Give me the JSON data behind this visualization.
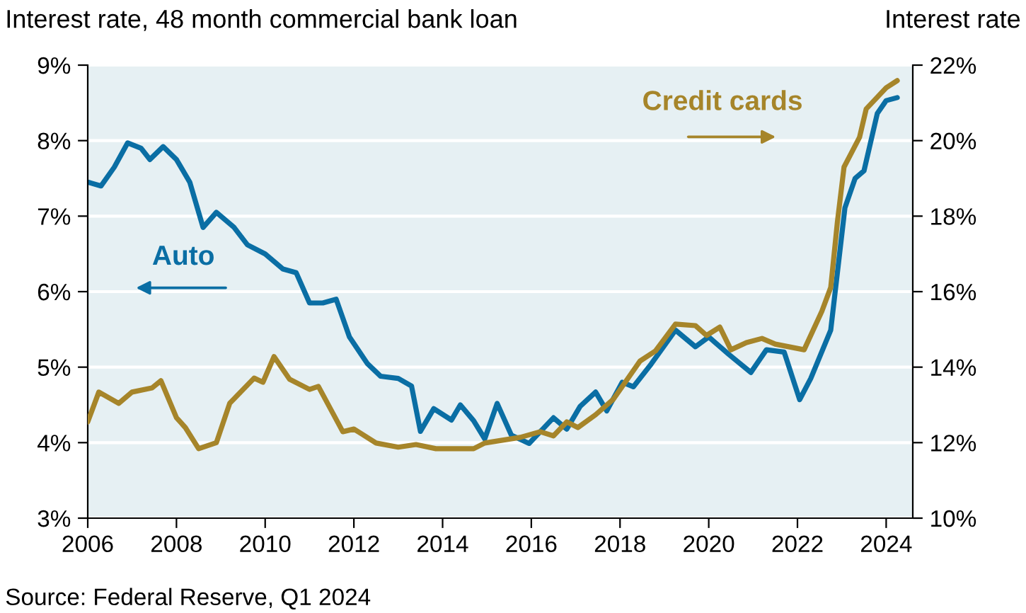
{
  "chart_data": {
    "type": "line",
    "ylabel": "Interest rate, 48 month commercial bank loan",
    "y2label": "Interest rate",
    "annotations": [
      "Source: Federal Reserve, Q1 2024"
    ],
    "xlim": [
      2006,
      2024.6
    ],
    "xticks": [
      2006,
      2008,
      2010,
      2012,
      2014,
      2016,
      2018,
      2020,
      2022,
      2024
    ],
    "ylim": [
      3,
      9
    ],
    "yticks": [
      {
        "value": 3,
        "label": "3%"
      },
      {
        "value": 4,
        "label": "4%"
      },
      {
        "value": 5,
        "label": "5%"
      },
      {
        "value": 6,
        "label": "6%"
      },
      {
        "value": 7,
        "label": "7%"
      },
      {
        "value": 8,
        "label": "8%"
      },
      {
        "value": 9,
        "label": "9%"
      }
    ],
    "y2lim": [
      10,
      22
    ],
    "y2ticks": [
      {
        "value": 10,
        "label": "10%"
      },
      {
        "value": 12,
        "label": "12%"
      },
      {
        "value": 14,
        "label": "14%"
      },
      {
        "value": 16,
        "label": "16%"
      },
      {
        "value": 18,
        "label": "18%"
      },
      {
        "value": 20,
        "label": "20%"
      },
      {
        "value": 22,
        "label": "22%"
      }
    ],
    "grid": "y",
    "legend": false,
    "marker": "none",
    "line_style": "solid",
    "series": [
      {
        "name": "Auto",
        "color": "#0a6ea4",
        "axis": "y",
        "x": [
          2006.0,
          2006.3,
          2006.6,
          2006.9,
          2007.2,
          2007.4,
          2007.7,
          2008.0,
          2008.3,
          2008.6,
          2008.9,
          2009.3,
          2009.6,
          2010.0,
          2010.4,
          2010.7,
          2011.0,
          2011.3,
          2011.6,
          2011.9,
          2012.3,
          2012.6,
          2013.0,
          2013.3,
          2013.5,
          2013.8,
          2014.2,
          2014.4,
          2014.7,
          2014.95,
          2015.23,
          2015.55,
          2015.95,
          2016.5,
          2016.8,
          2017.1,
          2017.45,
          2017.7,
          2018.05,
          2018.3,
          2018.7,
          2019.25,
          2019.7,
          2020.0,
          2020.45,
          2020.95,
          2021.3,
          2021.7,
          2022.05,
          2022.3,
          2022.75,
          2023.07,
          2023.3,
          2023.5,
          2023.8,
          2024.0,
          2024.25
        ],
        "values": [
          7.45,
          7.4,
          7.65,
          7.97,
          7.9,
          7.75,
          7.92,
          7.75,
          7.45,
          6.85,
          7.05,
          6.85,
          6.62,
          6.5,
          6.3,
          6.25,
          5.85,
          5.85,
          5.9,
          5.4,
          5.05,
          4.88,
          4.85,
          4.75,
          4.15,
          4.45,
          4.3,
          4.5,
          4.29,
          4.05,
          4.52,
          4.1,
          3.99,
          4.33,
          4.18,
          4.48,
          4.67,
          4.42,
          4.8,
          4.74,
          5.04,
          5.49,
          5.27,
          5.4,
          5.17,
          4.93,
          5.23,
          5.2,
          4.57,
          4.85,
          5.49,
          7.11,
          7.5,
          7.6,
          8.36,
          8.53,
          8.57
        ]
      },
      {
        "name": "Credit cards",
        "color": "#a6852a",
        "axis": "y2",
        "x": [
          2006.0,
          2006.25,
          2006.7,
          2007.0,
          2007.45,
          2007.65,
          2008.0,
          2008.2,
          2008.5,
          2008.9,
          2009.2,
          2009.75,
          2009.95,
          2010.2,
          2010.55,
          2011.0,
          2011.2,
          2011.75,
          2012.0,
          2012.5,
          2013.0,
          2013.4,
          2013.85,
          2014.7,
          2014.95,
          2015.75,
          2016.2,
          2016.5,
          2016.8,
          2017.05,
          2017.45,
          2017.85,
          2018.45,
          2018.8,
          2019.25,
          2019.7,
          2019.95,
          2020.25,
          2020.5,
          2020.85,
          2021.2,
          2021.5,
          2022.15,
          2022.55,
          2022.75,
          2022.9,
          2023.05,
          2023.4,
          2023.55,
          2024.0,
          2024.25
        ],
        "values": [
          12.55,
          13.34,
          13.04,
          13.34,
          13.45,
          13.64,
          12.66,
          12.4,
          11.84,
          12.0,
          13.04,
          13.71,
          13.6,
          14.28,
          13.68,
          13.41,
          13.49,
          12.29,
          12.36,
          11.99,
          11.88,
          11.95,
          11.84,
          11.84,
          11.99,
          12.14,
          12.29,
          12.18,
          12.55,
          12.4,
          12.74,
          13.15,
          14.16,
          14.43,
          15.14,
          15.1,
          14.84,
          15.06,
          14.46,
          14.65,
          14.76,
          14.61,
          14.46,
          15.48,
          16.11,
          17.84,
          19.3,
          20.09,
          20.84,
          21.4,
          21.59
        ]
      }
    ]
  }
}
